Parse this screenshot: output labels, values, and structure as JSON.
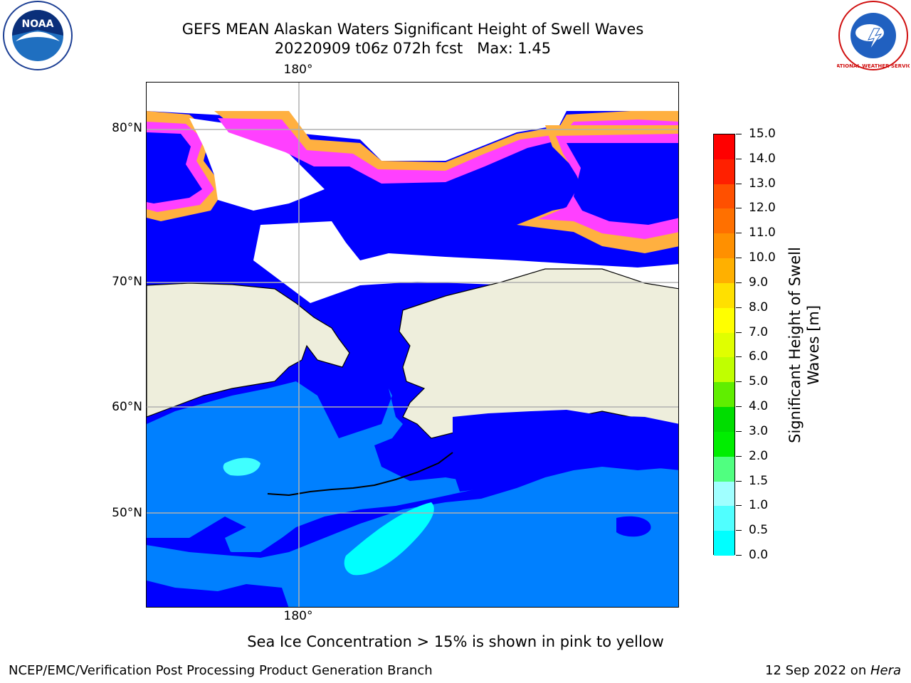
{
  "title": {
    "line1": "GEFS MEAN Alaskan Waters Significant Height of Swell Waves",
    "line2": "20220909 t06z 072h fcst   Max: 1.45"
  },
  "map": {
    "lon_label_top": "180°",
    "lon_label_bottom": "180°",
    "lat_labels": [
      "80°N",
      "70°N",
      "60°N",
      "50°N"
    ],
    "colors": {
      "ocean_deep": "#0000ff",
      "ocean_mid": "#0080ff",
      "ocean_cyan": "#00ffff",
      "ocean_light_cyan": "#40ffff",
      "land": "#eeeedc",
      "ice_white": "#ffffff",
      "ice_pink": "#ff40ff",
      "ice_orange": "#ffb040",
      "ice_yellow": "#ffff30",
      "grid": "#b0b0b0"
    }
  },
  "colorbar": {
    "title": "Significant Height of Swell Waves [m]",
    "labels": [
      "15.0",
      "14.0",
      "13.0",
      "12.0",
      "11.0",
      "10.0",
      "9.0",
      "8.0",
      "7.0",
      "6.0",
      "5.0",
      "4.0",
      "3.0",
      "2.0",
      "1.5",
      "1.0",
      "0.5",
      "0.0"
    ],
    "colors": [
      "#ff0000",
      "#ff2000",
      "#ff5000",
      "#ff7000",
      "#ff9000",
      "#ffb000",
      "#ffe000",
      "#ffff00",
      "#e0ff00",
      "#c0ff00",
      "#60ee00",
      "#00dd00",
      "#00ee00",
      "#50ff80",
      "#a0ffff",
      "#50ffff",
      "#00ffff",
      "#0080ff",
      "#0000ff"
    ]
  },
  "note": "Sea Ice Concentration > 15% is shown in pink to yellow",
  "footer": {
    "left": "NCEP/EMC/Verification Post Processing Product Generation Branch",
    "right_prefix": "12 Sep 2022 on ",
    "right_italic": "Hera"
  },
  "logos": {
    "left": {
      "name": "noaa-logo",
      "text": "NOAA"
    },
    "right": {
      "name": "nws-logo",
      "text": "NATIONAL WEATHER SERVICE"
    }
  }
}
